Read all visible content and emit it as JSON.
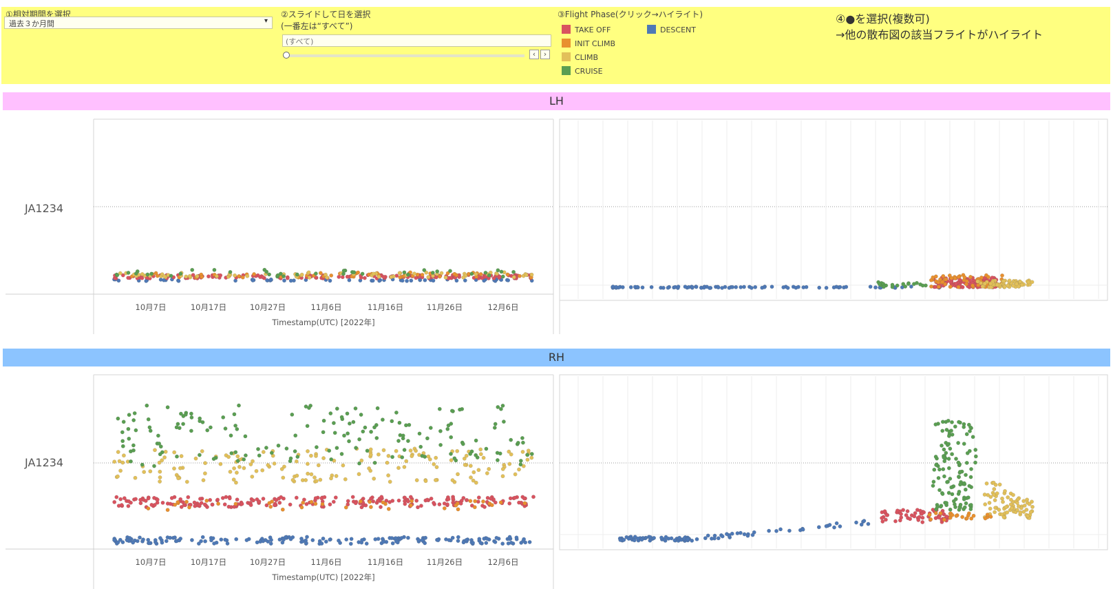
{
  "filters": {
    "period": {
      "label": "①相対期間を選択",
      "value": "過去３か月間"
    },
    "day": {
      "label_line1": "②スライドして日を選択",
      "label_line2": "(一番左は“すべて”)",
      "value": "(すべて)"
    },
    "phase": {
      "label": "③Flight Phase(クリック→ハイライト)"
    },
    "note": {
      "line1": "④●を選択(複数可)",
      "line2": "→他の散布図の該当フライトがハイライト"
    }
  },
  "phases": [
    {
      "name": "TAKE OFF",
      "color": "#d9535f"
    },
    {
      "name": "INIT CLIMB",
      "color": "#e8902f"
    },
    {
      "name": "CLIMB",
      "color": "#e2c05a"
    },
    {
      "name": "CRUISE",
      "color": "#5a9e52"
    },
    {
      "name": "DESCENT",
      "color": "#4e79b6"
    }
  ],
  "sections": [
    {
      "title": "LH",
      "band_color": "#ffc0ff",
      "row_label": "JA1234"
    },
    {
      "title": "RH",
      "band_color": "#8cc4ff",
      "row_label": "JA1234"
    }
  ],
  "x_axis": {
    "ticks": [
      "10月7日",
      "10月17日",
      "10月27日",
      "11月6日",
      "11月16日",
      "11月26日",
      "12月6日"
    ],
    "title": "Timestamp(UTC) [2022年]"
  },
  "chart_data": [
    {
      "type": "scatter",
      "panel": "LH-time",
      "x_range": [
        "2022-09-29",
        "2022-12-13"
      ],
      "phase_levels": {
        "DESCENT": 0.08,
        "TAKE OFF": 0.1,
        "INIT CLIMB": 0.11,
        "CLIMB": 0.11,
        "CRUISE": 0.12
      }
    },
    {
      "type": "scatter",
      "panel": "LH-distribution",
      "x_range": [
        0,
        1
      ]
    },
    {
      "type": "scatter",
      "panel": "RH-time",
      "x_range": [
        "2022-09-29",
        "2022-12-13"
      ],
      "phase_levels": {
        "DESCENT": 0.05,
        "TAKE OFF": 0.27,
        "INIT CLIMB": 0.25,
        "CLIMB": 0.48,
        "CRUISE": 0.65
      }
    },
    {
      "type": "scatter",
      "panel": "RH-distribution",
      "x_range": [
        0,
        1
      ]
    }
  ]
}
